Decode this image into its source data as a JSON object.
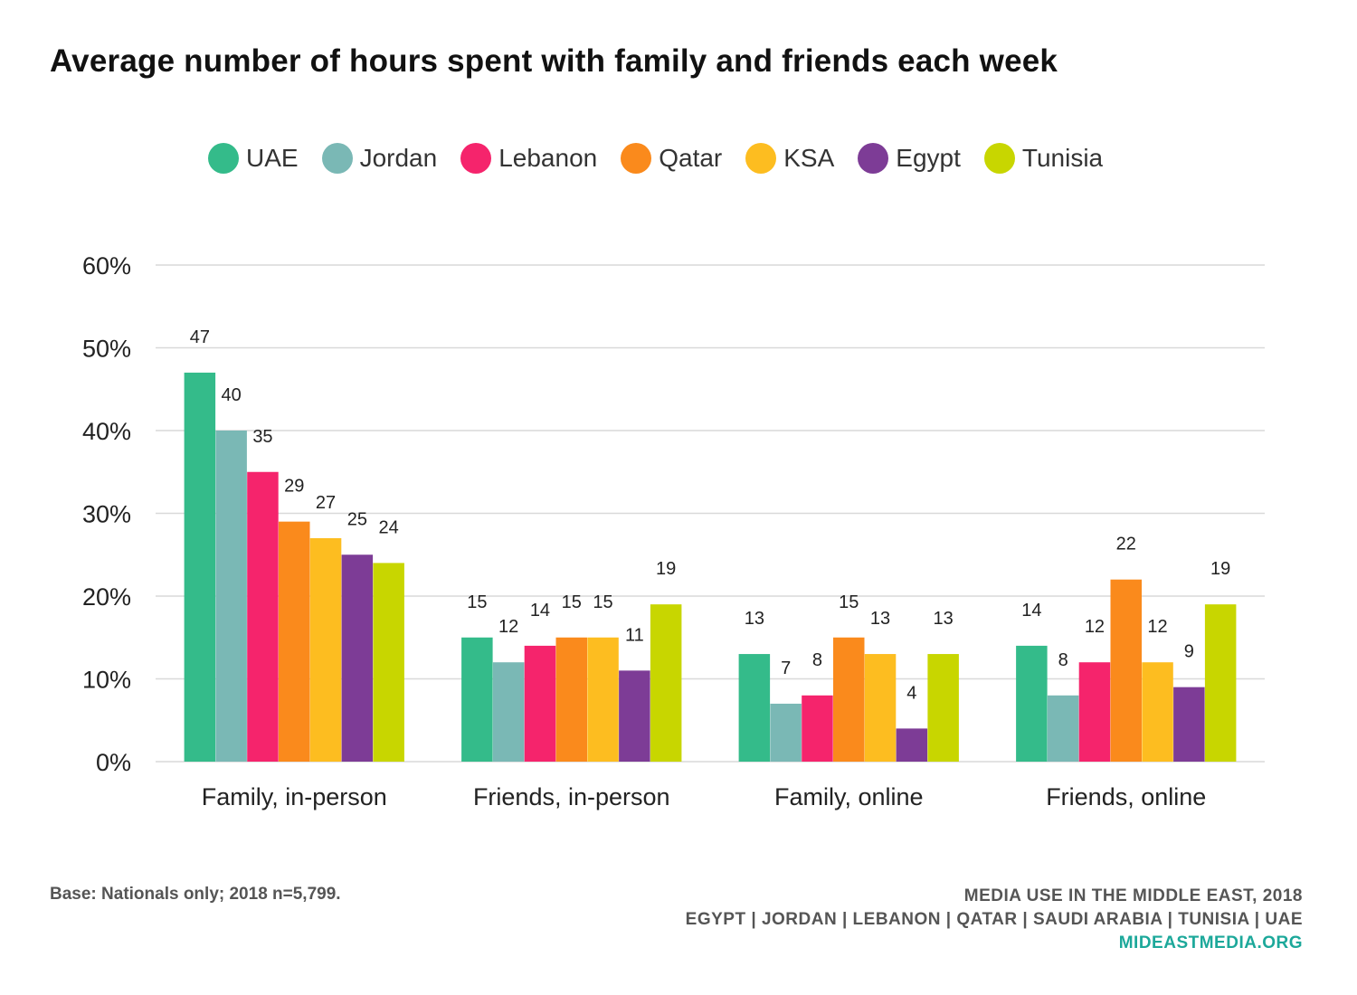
{
  "title": "Average number of hours spent with family and friends each week",
  "footnote": "Base: Nationals only; 2018 n=5,799.",
  "credits": {
    "line1": "MEDIA USE IN THE MIDDLE EAST, 2018",
    "line2": "EGYPT | JORDAN | LEBANON | QATAR | SAUDI ARABIA | TUNISIA | UAE",
    "line3": "MIDEASTMEDIA.ORG"
  },
  "colors": {
    "UAE": "#34bb8a",
    "Jordan": "#7ab8b5",
    "Lebanon": "#f5246c",
    "Qatar": "#fa8a1c",
    "KSA": "#fdbd20",
    "Egypt": "#7d3c96",
    "Tunisia": "#c8d600",
    "grid": "#d9d9d9",
    "credit_link": "#1ca89a"
  },
  "chart_data": {
    "type": "bar",
    "title": "Average number of hours spent with family and friends each week",
    "xlabel": "",
    "ylabel": "",
    "ylim": [
      0,
      60
    ],
    "yticks": [
      "0%",
      "10%",
      "20%",
      "30%",
      "40%",
      "50%",
      "60%"
    ],
    "ytick_values": [
      0,
      10,
      20,
      30,
      40,
      50,
      60
    ],
    "grid": true,
    "legend": "top",
    "categories": [
      "Family, in-person",
      "Friends, in-person",
      "Family, online",
      "Friends, online"
    ],
    "series": [
      {
        "name": "UAE",
        "color": "#34bb8a",
        "values": [
          47,
          15,
          13,
          14
        ]
      },
      {
        "name": "Jordan",
        "color": "#7ab8b5",
        "values": [
          40,
          12,
          7,
          8
        ]
      },
      {
        "name": "Lebanon",
        "color": "#f5246c",
        "values": [
          35,
          14,
          8,
          12
        ]
      },
      {
        "name": "Qatar",
        "color": "#fa8a1c",
        "values": [
          29,
          15,
          15,
          22
        ]
      },
      {
        "name": "KSA",
        "color": "#fdbd20",
        "values": [
          27,
          15,
          13,
          12
        ]
      },
      {
        "name": "Egypt",
        "color": "#7d3c96",
        "values": [
          25,
          11,
          4,
          9
        ]
      },
      {
        "name": "Tunisia",
        "color": "#c8d600",
        "values": [
          24,
          19,
          13,
          19
        ]
      }
    ]
  }
}
